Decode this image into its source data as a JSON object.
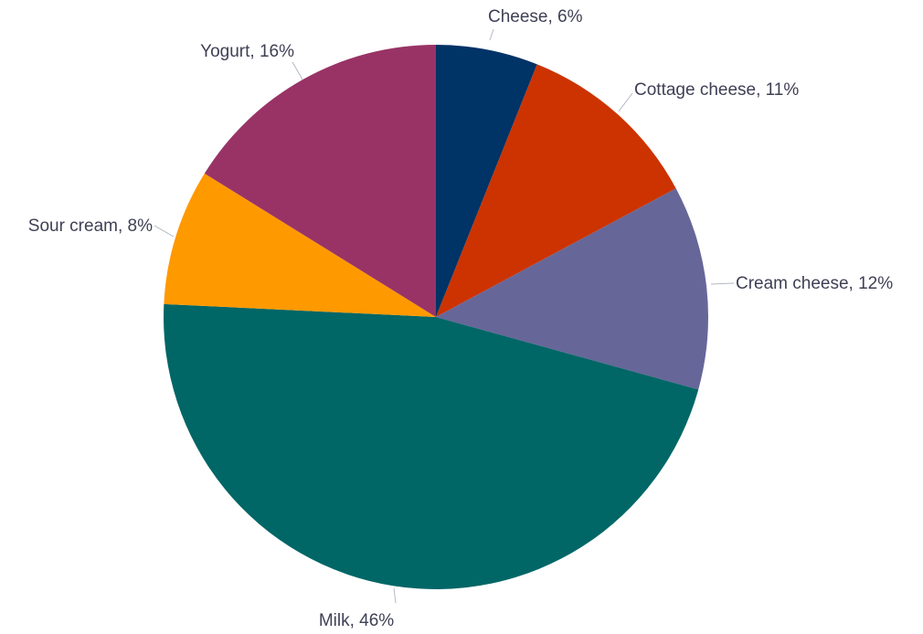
{
  "chart_data": {
    "type": "pie",
    "title": "",
    "slices": [
      {
        "label": "Cheese, 6%",
        "name": "Cheese",
        "value": 6,
        "color": "#003366"
      },
      {
        "label": "Cottage cheese, 11%",
        "name": "Cottage cheese",
        "value": 11,
        "color": "#cc3300"
      },
      {
        "label": "Cream cheese, 12%",
        "name": "Cream cheese",
        "value": 12,
        "color": "#666699"
      },
      {
        "label": "Milk, 46%",
        "name": "Milk",
        "value": 46,
        "color": "#006666"
      },
      {
        "label": "Sour cream, 8%",
        "name": "Sour cream",
        "value": 8,
        "color": "#ff9900"
      },
      {
        "label": "Yogurt, 16%",
        "name": "Yogurt",
        "value": 16,
        "color": "#993366"
      }
    ],
    "start_angle": "12 o'clock",
    "direction": "clockwise",
    "legend": "none",
    "data_labels": "outside with leader lines"
  }
}
